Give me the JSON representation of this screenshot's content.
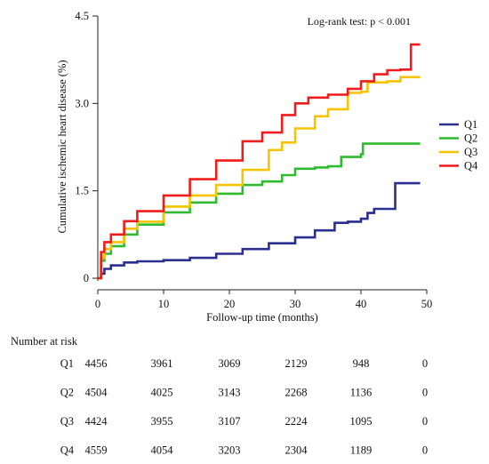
{
  "chart_data": {
    "type": "line",
    "subtype": "kaplan-meier cumulative incidence",
    "annotation": "Log-rank test: p < 0.001",
    "xlabel": "Follow-up time (months)",
    "ylabel": "Cumulative ischemic heart disease (%)",
    "xlim": [
      0,
      50
    ],
    "ylim": [
      0,
      4.5
    ],
    "x_ticks": [
      0,
      10,
      20,
      30,
      40,
      50
    ],
    "x_tick_labels": [
      "0",
      "10",
      "20",
      "30",
      "40",
      "50"
    ],
    "y_ticks": [
      0,
      1.5,
      3.0,
      4.5
    ],
    "y_tick_labels": [
      "0",
      "1.5",
      "3.0",
      "4.5"
    ],
    "grid": false,
    "legend_position": "right",
    "series": [
      {
        "name": "Q1",
        "color": "#2b2f8f",
        "points": [
          [
            0,
            0
          ],
          [
            0.5,
            0.08
          ],
          [
            1,
            0.16
          ],
          [
            2,
            0.22
          ],
          [
            4,
            0.27
          ],
          [
            6,
            0.29
          ],
          [
            10,
            0.31
          ],
          [
            14,
            0.35
          ],
          [
            18,
            0.42
          ],
          [
            22,
            0.5
          ],
          [
            26,
            0.6
          ],
          [
            30,
            0.7
          ],
          [
            33,
            0.82
          ],
          [
            36,
            0.95
          ],
          [
            38,
            0.97
          ],
          [
            40,
            1.02
          ],
          [
            41,
            1.12
          ],
          [
            42,
            1.19
          ],
          [
            45,
            1.19
          ],
          [
            45.2,
            1.63
          ],
          [
            49,
            1.63
          ]
        ]
      },
      {
        "name": "Q2",
        "color": "#2fbb2f",
        "points": [
          [
            0,
            0
          ],
          [
            0.5,
            0.3
          ],
          [
            1,
            0.42
          ],
          [
            2,
            0.55
          ],
          [
            4,
            0.75
          ],
          [
            6,
            0.92
          ],
          [
            10,
            1.13
          ],
          [
            14,
            1.3
          ],
          [
            18,
            1.45
          ],
          [
            22,
            1.6
          ],
          [
            25,
            1.66
          ],
          [
            28,
            1.77
          ],
          [
            30,
            1.88
          ],
          [
            33,
            1.9
          ],
          [
            35,
            1.92
          ],
          [
            37,
            2.08
          ],
          [
            40,
            2.13
          ],
          [
            40.3,
            2.31
          ],
          [
            49,
            2.31
          ]
        ]
      },
      {
        "name": "Q3",
        "color": "#f5c400",
        "points": [
          [
            0,
            0
          ],
          [
            0.5,
            0.35
          ],
          [
            1,
            0.5
          ],
          [
            2,
            0.62
          ],
          [
            4,
            0.85
          ],
          [
            6,
            0.97
          ],
          [
            10,
            1.23
          ],
          [
            14,
            1.42
          ],
          [
            18,
            1.6
          ],
          [
            22,
            1.86
          ],
          [
            26,
            2.2
          ],
          [
            28,
            2.33
          ],
          [
            30,
            2.57
          ],
          [
            33,
            2.78
          ],
          [
            35,
            2.9
          ],
          [
            38,
            3.18
          ],
          [
            40,
            3.2
          ],
          [
            41,
            3.36
          ],
          [
            44,
            3.38
          ],
          [
            46,
            3.45
          ],
          [
            49,
            3.45
          ]
        ]
      },
      {
        "name": "Q4",
        "color": "#ee1c1c",
        "points": [
          [
            0,
            0
          ],
          [
            0.5,
            0.45
          ],
          [
            1,
            0.62
          ],
          [
            2,
            0.75
          ],
          [
            4,
            0.98
          ],
          [
            6,
            1.15
          ],
          [
            10,
            1.42
          ],
          [
            14,
            1.7
          ],
          [
            18,
            2.02
          ],
          [
            22,
            2.35
          ],
          [
            25,
            2.5
          ],
          [
            28,
            2.8
          ],
          [
            30,
            3.0
          ],
          [
            32,
            3.1
          ],
          [
            35,
            3.15
          ],
          [
            38,
            3.25
          ],
          [
            40,
            3.38
          ],
          [
            42,
            3.5
          ],
          [
            44,
            3.57
          ],
          [
            46,
            3.58
          ],
          [
            47.5,
            3.58
          ],
          [
            47.6,
            4.01
          ],
          [
            49,
            4.01
          ]
        ]
      }
    ],
    "risk_table": {
      "title": "Number at risk",
      "times": [
        0,
        10,
        20,
        30,
        40,
        50
      ],
      "rows": [
        {
          "label": "Q1",
          "values": [
            "4456",
            "3961",
            "3069",
            "2129",
            "948",
            "0"
          ]
        },
        {
          "label": "Q2",
          "values": [
            "4504",
            "4025",
            "3143",
            "2268",
            "1136",
            "0"
          ]
        },
        {
          "label": "Q3",
          "values": [
            "4424",
            "3955",
            "3107",
            "2224",
            "1095",
            "0"
          ]
        },
        {
          "label": "Q4",
          "values": [
            "4559",
            "4054",
            "3203",
            "2304",
            "1189",
            "0"
          ]
        }
      ]
    }
  }
}
